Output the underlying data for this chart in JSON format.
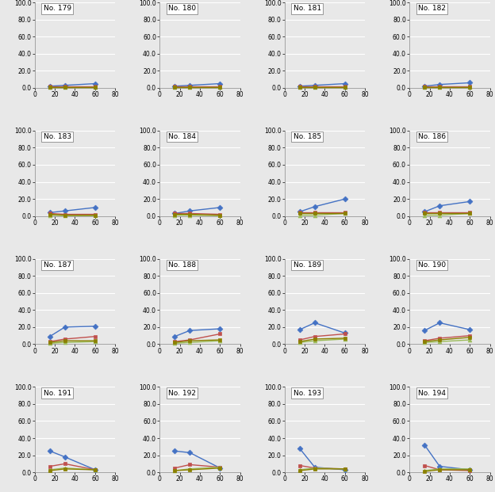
{
  "x": [
    15,
    30,
    60
  ],
  "subplots": [
    {
      "title": "No. 179",
      "blue": [
        2,
        3,
        5
      ],
      "red": [
        2,
        2,
        2
      ],
      "green": [
        0.5,
        0.5,
        0.5
      ],
      "olive": [
        1,
        1,
        1
      ]
    },
    {
      "title": "No. 180",
      "blue": [
        2,
        3,
        5
      ],
      "red": [
        2,
        2,
        2
      ],
      "green": [
        0.5,
        0.5,
        0.5
      ],
      "olive": [
        1,
        1,
        1
      ]
    },
    {
      "title": "No. 181",
      "blue": [
        2,
        3,
        5
      ],
      "red": [
        2,
        2,
        2
      ],
      "green": [
        0.5,
        0.5,
        0.5
      ],
      "olive": [
        1,
        1,
        1
      ]
    },
    {
      "title": "No. 182",
      "blue": [
        2,
        4,
        6
      ],
      "red": [
        2,
        2,
        2
      ],
      "green": [
        0.5,
        0.5,
        0.5
      ],
      "olive": [
        1,
        1,
        1
      ]
    },
    {
      "title": "No. 183",
      "blue": [
        4,
        6,
        10
      ],
      "red": [
        3,
        2,
        2
      ],
      "green": [
        1,
        0.5,
        0.5
      ],
      "olive": [
        2,
        1,
        1
      ]
    },
    {
      "title": "No. 184",
      "blue": [
        3,
        6,
        10
      ],
      "red": [
        3,
        3,
        2
      ],
      "green": [
        1,
        1,
        0.5
      ],
      "olive": [
        2,
        2,
        1
      ]
    },
    {
      "title": "No. 185",
      "blue": [
        5,
        11,
        20
      ],
      "red": [
        4,
        4,
        4
      ],
      "green": [
        1,
        1,
        3
      ],
      "olive": [
        3,
        3,
        3
      ]
    },
    {
      "title": "No. 186",
      "blue": [
        5,
        12,
        17
      ],
      "red": [
        4,
        4,
        4
      ],
      "green": [
        1,
        1,
        3
      ],
      "olive": [
        3,
        3,
        3
      ]
    },
    {
      "title": "No. 187",
      "blue": [
        9,
        20,
        21
      ],
      "red": [
        3,
        6,
        9
      ],
      "green": [
        1,
        2,
        3
      ],
      "olive": [
        2,
        4,
        4
      ]
    },
    {
      "title": "No. 188",
      "blue": [
        9,
        16,
        18
      ],
      "red": [
        3,
        5,
        12
      ],
      "green": [
        1,
        2,
        4
      ],
      "olive": [
        2,
        4,
        5
      ]
    },
    {
      "title": "No. 189",
      "blue": [
        17,
        25,
        13
      ],
      "red": [
        5,
        9,
        12
      ],
      "green": [
        2,
        4,
        6
      ],
      "olive": [
        3,
        6,
        7
      ]
    },
    {
      "title": "No. 190",
      "blue": [
        16,
        25,
        17
      ],
      "red": [
        4,
        7,
        10
      ],
      "green": [
        2,
        3,
        5
      ],
      "olive": [
        3,
        5,
        8
      ]
    },
    {
      "title": "No. 191",
      "blue": [
        25,
        18,
        3
      ],
      "red": [
        7,
        10,
        3
      ],
      "green": [
        3,
        5,
        3
      ],
      "olive": [
        2,
        4,
        3
      ]
    },
    {
      "title": "No. 192",
      "blue": [
        25,
        23,
        5
      ],
      "red": [
        5,
        9,
        6
      ],
      "green": [
        2,
        4,
        6
      ],
      "olive": [
        2,
        3,
        5
      ]
    },
    {
      "title": "No. 193",
      "blue": [
        28,
        6,
        3
      ],
      "red": [
        8,
        5,
        4
      ],
      "green": [
        3,
        5,
        4
      ],
      "olive": [
        2,
        4,
        4
      ]
    },
    {
      "title": "No. 194",
      "blue": [
        32,
        7,
        3
      ],
      "red": [
        8,
        3,
        2
      ],
      "green": [
        2,
        4,
        4
      ],
      "olive": [
        1,
        3,
        3
      ]
    }
  ],
  "colors": {
    "blue": "#4472C4",
    "red": "#C0504D",
    "green": "#9BBB59",
    "olive": "#8B8000"
  },
  "line_colors": {
    "blue": "#4472C4",
    "red": "#C0504D",
    "green": "#9BBB59",
    "olive": "#8B8000"
  },
  "markers": {
    "blue": "D",
    "red": "s",
    "green": "^",
    "olive": "s"
  },
  "ylim": [
    0,
    100
  ],
  "yticks": [
    0.0,
    20.0,
    40.0,
    60.0,
    80.0,
    100.0
  ],
  "xlim": [
    0,
    80
  ],
  "xticks": [
    0,
    20,
    40,
    60,
    80
  ],
  "nrows": 4,
  "ncols": 4,
  "figsize": [
    6.24,
    6.21
  ],
  "dpi": 100,
  "bg_color": "#E8E8E8"
}
